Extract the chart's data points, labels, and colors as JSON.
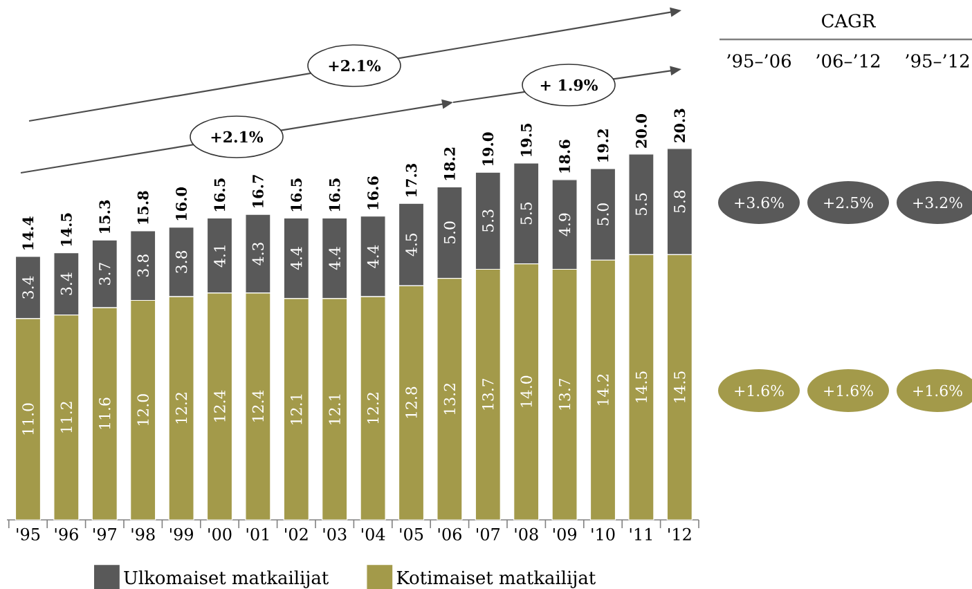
{
  "chart_data": {
    "type": "bar",
    "stacked": true,
    "legend": "bottom",
    "tick_labels": "x",
    "categories": [
      "'95",
      "'96",
      "'97",
      "'98",
      "'99",
      "'00",
      "'01",
      "'02",
      "'03",
      "'04",
      "'05",
      "'06",
      "'07",
      "'08",
      "'09",
      "'10",
      "'11",
      "'12"
    ],
    "series": [
      {
        "name": "Kotimaiset matkailijat",
        "color": "#a39a4a",
        "values": [
          11.0,
          11.2,
          11.6,
          12.0,
          12.2,
          12.4,
          12.4,
          12.1,
          12.1,
          12.2,
          12.8,
          13.2,
          13.7,
          14.0,
          13.7,
          14.2,
          14.5,
          14.5
        ],
        "value_labels": [
          "11.0",
          "11.2",
          "11.6",
          "12.0",
          "12.2",
          "12.4",
          "12.4",
          "12.1",
          "12.1",
          "12.2",
          "12.8",
          "13.2",
          "13.7",
          "14.0",
          "13.7",
          "14.2",
          "14.5",
          "14.5"
        ]
      },
      {
        "name": "Ulkomaiset matkailijat",
        "color": "#595959",
        "values": [
          3.4,
          3.4,
          3.7,
          3.8,
          3.8,
          4.1,
          4.3,
          4.4,
          4.4,
          4.4,
          4.5,
          5.0,
          5.3,
          5.5,
          4.9,
          5.0,
          5.5,
          5.8
        ],
        "value_labels": [
          "3.4",
          "3.4",
          "3.7",
          "3.8",
          "3.8",
          "4.1",
          "4.3",
          "4.4",
          "4.4",
          "4.4",
          "4.5",
          "5.0",
          "5.3",
          "5.5",
          "4.9",
          "5.0",
          "5.5",
          "5.8"
        ]
      }
    ],
    "totals": [
      "14.4",
      "14.5",
      "15.3",
      "15.8",
      "16.0",
      "16.5",
      "16.7",
      "16.5",
      "16.5",
      "16.6",
      "17.3",
      "18.2",
      "19.0",
      "19.5",
      "18.6",
      "19.2",
      "20.0",
      "20.3"
    ],
    "annotations": [
      "+2.1%",
      "+2.1%",
      "+ 1.9%",
      "CAGR",
      "’95–’06",
      "’06–’12",
      "’95–’12",
      "+3.6%",
      "+2.5%",
      "+3.2%",
      "+1.6%",
      "+1.6%",
      "+1.6%"
    ]
  }
}
